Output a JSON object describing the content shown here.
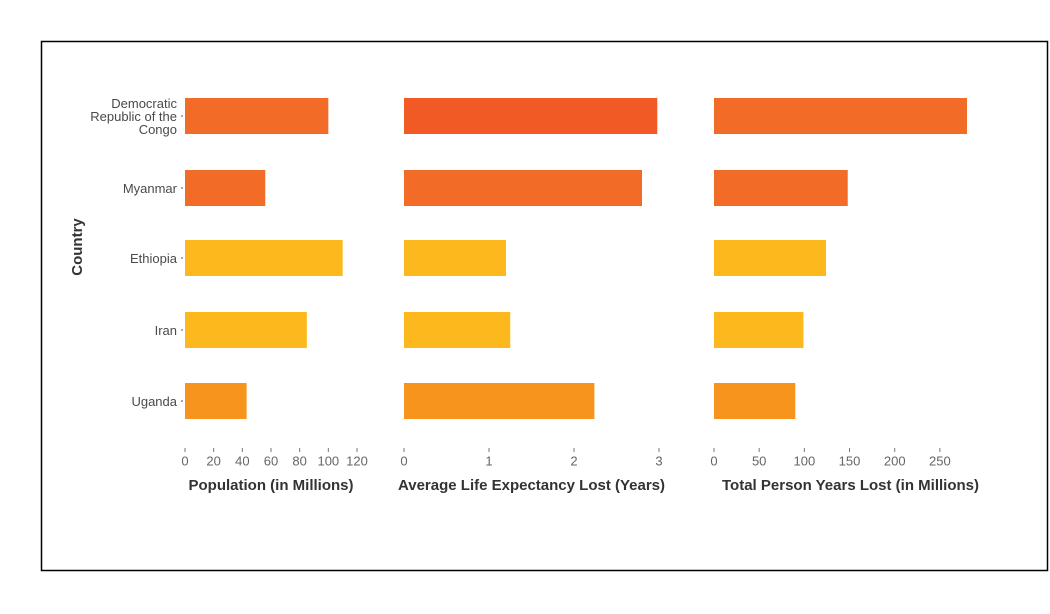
{
  "chart_data": [
    {
      "type": "bar",
      "y_label": "Country",
      "x_label": "Population (in Millions)",
      "categories": [
        "Democratic Republic of the Congo",
        "Myanmar",
        "Ethiopia",
        "Iran",
        "Uganda"
      ],
      "values": [
        100,
        56,
        110,
        85,
        43
      ],
      "colors": [
        "#f26b27",
        "#f26b27",
        "#fdb81e",
        "#fdb81e",
        "#f7941d"
      ],
      "xlim": [
        0,
        120
      ],
      "xticks": [
        0,
        20,
        40,
        60,
        80,
        100,
        120
      ]
    },
    {
      "type": "bar",
      "x_label": "Average Life Expectancy Lost (Years)",
      "values": [
        2.98,
        2.8,
        1.2,
        1.25,
        2.24
      ],
      "colors": [
        "#f15a24",
        "#f26b27",
        "#fdb81e",
        "#fdb81e",
        "#f7941d"
      ],
      "xlim": [
        0,
        3
      ],
      "xticks": [
        0,
        1,
        2,
        3
      ]
    },
    {
      "type": "bar",
      "x_label": "Total Person Years Lost (in Millions)",
      "values": [
        280,
        148,
        124,
        99,
        90
      ],
      "colors": [
        "#f26b27",
        "#f26b27",
        "#fdb81e",
        "#fdb81e",
        "#f7941d"
      ],
      "xlim": [
        0,
        280
      ],
      "xticks": [
        0,
        50,
        100,
        150,
        200,
        250
      ]
    }
  ]
}
